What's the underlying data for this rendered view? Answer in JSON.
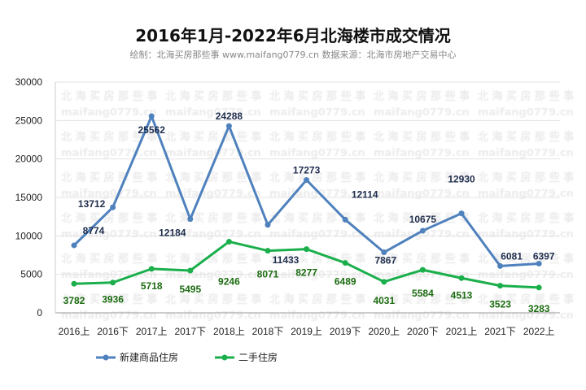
{
  "chart_data": {
    "type": "line",
    "title": "2016年1月-2022年6月北海楼市成交情况",
    "subtitle": "绘制：北海买房那些事 www.maifang0779.cn 数据来源：北海市房地产交易中心",
    "categories": [
      "2016上",
      "2016下",
      "2017上",
      "2017下",
      "2018上",
      "2018下",
      "2019上",
      "2019下",
      "2020上",
      "2020下",
      "2021上",
      "2021下",
      "2022上"
    ],
    "series": [
      {
        "name": "新建商品住房",
        "color": "#4f81bd",
        "label_color": "#1f2d4d",
        "values": [
          8774,
          13712,
          25562,
          12184,
          24288,
          11433,
          17273,
          12114,
          7867,
          10675,
          12930,
          6081,
          6397
        ]
      },
      {
        "name": "二手住房",
        "color": "#1aaf4b",
        "label_color": "#1b6b10",
        "values": [
          3782,
          3936,
          5718,
          5495,
          9246,
          8071,
          8277,
          6489,
          4031,
          5584,
          4513,
          3523,
          3283
        ]
      }
    ],
    "yticks": [
      0,
      5000,
      10000,
      15000,
      20000,
      25000,
      30000
    ],
    "ylim": [
      0,
      30000
    ],
    "grid": true,
    "legend": "bottom",
    "watermark": [
      "北海买房那些事",
      "maifang0779.cn"
    ]
  }
}
